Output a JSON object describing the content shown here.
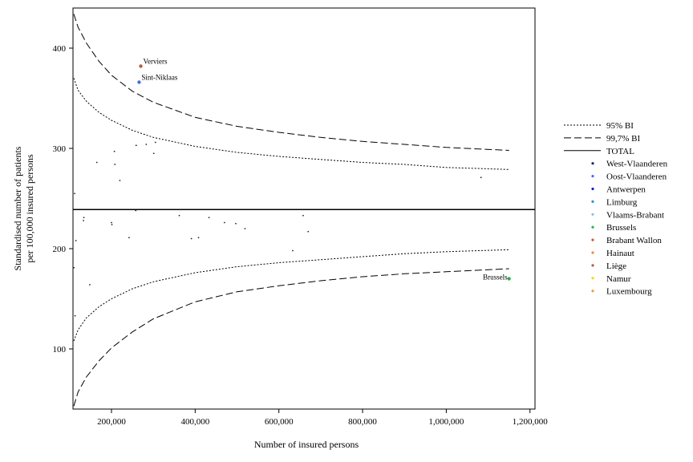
{
  "chart_data": {
    "type": "scatter",
    "title": "",
    "xlabel": "Number of insured persons",
    "ylabel_lines": [
      "Standardised number of patients",
      "per 100,000 insured persons"
    ],
    "xlim": [
      108000,
      1212000
    ],
    "ylim": [
      40,
      440
    ],
    "x_ticks": [
      {
        "value": 200000,
        "label": "200,000"
      },
      {
        "value": 400000,
        "label": "400,000"
      },
      {
        "value": 600000,
        "label": "600,000"
      },
      {
        "value": 800000,
        "label": "800,000"
      },
      {
        "value": 1000000,
        "label": "1,000,000"
      },
      {
        "value": 1200000,
        "label": "1,200,000"
      }
    ],
    "y_ticks": [
      {
        "value": 100,
        "label": "100"
      },
      {
        "value": 200,
        "label": "200"
      },
      {
        "value": 300,
        "label": "300"
      },
      {
        "value": 400,
        "label": "400"
      }
    ],
    "total": 239,
    "ci_curves": [
      {
        "name": "95% BI",
        "style": "dotted",
        "upper": true,
        "points": [
          [
            110000,
            370
          ],
          [
            120000,
            358
          ],
          [
            140000,
            347
          ],
          [
            170000,
            336
          ],
          [
            200000,
            328
          ],
          [
            250000,
            318
          ],
          [
            300000,
            311
          ],
          [
            400000,
            302
          ],
          [
            500000,
            296
          ],
          [
            600000,
            292
          ],
          [
            700000,
            289
          ],
          [
            800000,
            286
          ],
          [
            900000,
            284
          ],
          [
            1000000,
            281
          ],
          [
            1150000,
            279
          ]
        ]
      },
      {
        "name": "95% BI",
        "style": "dotted",
        "upper": false,
        "points": [
          [
            110000,
            108
          ],
          [
            120000,
            119
          ],
          [
            140000,
            131
          ],
          [
            170000,
            142
          ],
          [
            200000,
            150
          ],
          [
            250000,
            160
          ],
          [
            300000,
            167
          ],
          [
            400000,
            176
          ],
          [
            500000,
            182
          ],
          [
            600000,
            186
          ],
          [
            700000,
            189
          ],
          [
            800000,
            192
          ],
          [
            900000,
            195
          ],
          [
            1000000,
            197
          ],
          [
            1150000,
            199
          ]
        ]
      },
      {
        "name": "99,7% BI",
        "style": "dashed",
        "upper": true,
        "points": [
          [
            110000,
            434
          ],
          [
            120000,
            421
          ],
          [
            140000,
            405
          ],
          [
            170000,
            387
          ],
          [
            200000,
            373
          ],
          [
            250000,
            357
          ],
          [
            300000,
            346
          ],
          [
            400000,
            331
          ],
          [
            500000,
            322
          ],
          [
            600000,
            316
          ],
          [
            700000,
            311
          ],
          [
            800000,
            307
          ],
          [
            900000,
            304
          ],
          [
            1000000,
            301
          ],
          [
            1150000,
            298
          ]
        ]
      },
      {
        "name": "99,7% BI",
        "style": "dashed",
        "upper": false,
        "points": [
          [
            110000,
            43
          ],
          [
            120000,
            57
          ],
          [
            140000,
            72
          ],
          [
            170000,
            88
          ],
          [
            200000,
            101
          ],
          [
            250000,
            117
          ],
          [
            300000,
            130
          ],
          [
            400000,
            147
          ],
          [
            500000,
            157
          ],
          [
            600000,
            163
          ],
          [
            700000,
            168
          ],
          [
            800000,
            172
          ],
          [
            900000,
            175
          ],
          [
            1000000,
            177
          ],
          [
            1150000,
            180
          ]
        ]
      }
    ],
    "points": [
      {
        "x": 270000,
        "y": 382,
        "color": "#b85a3a",
        "label": "Verviers"
      },
      {
        "x": 266000,
        "y": 366,
        "color": "#4a6fd6",
        "label": "Sint-Niklaas"
      },
      {
        "x": 1150000,
        "y": 170,
        "color": "#2bb04a",
        "label": "Brussels"
      },
      {
        "x": 112000,
        "y": 255,
        "color": "#222222"
      },
      {
        "x": 165000,
        "y": 286,
        "color": "#222222"
      },
      {
        "x": 207000,
        "y": 297,
        "color": "#222222"
      },
      {
        "x": 208000,
        "y": 284,
        "color": "#222222"
      },
      {
        "x": 220000,
        "y": 268,
        "color": "#222222"
      },
      {
        "x": 259000,
        "y": 303,
        "color": "#222222"
      },
      {
        "x": 283000,
        "y": 304,
        "color": "#222222"
      },
      {
        "x": 301000,
        "y": 295,
        "color": "#222222"
      },
      {
        "x": 305000,
        "y": 306,
        "color": "#222222"
      },
      {
        "x": 1083000,
        "y": 271,
        "color": "#222222"
      },
      {
        "x": 258000,
        "y": 238,
        "color": "#222222"
      },
      {
        "x": 134000,
        "y": 231,
        "color": "#222222"
      },
      {
        "x": 133000,
        "y": 228,
        "color": "#222222"
      },
      {
        "x": 200000,
        "y": 226,
        "color": "#222222"
      },
      {
        "x": 201000,
        "y": 224,
        "color": "#222222"
      },
      {
        "x": 362000,
        "y": 233,
        "color": "#222222"
      },
      {
        "x": 433000,
        "y": 231,
        "color": "#222222"
      },
      {
        "x": 470000,
        "y": 226,
        "color": "#222222"
      },
      {
        "x": 497000,
        "y": 225,
        "color": "#222222"
      },
      {
        "x": 519000,
        "y": 220,
        "color": "#222222"
      },
      {
        "x": 658000,
        "y": 233,
        "color": "#222222"
      },
      {
        "x": 670000,
        "y": 217,
        "color": "#222222"
      },
      {
        "x": 115000,
        "y": 208,
        "color": "#222222"
      },
      {
        "x": 242000,
        "y": 211,
        "color": "#222222"
      },
      {
        "x": 391000,
        "y": 210,
        "color": "#222222"
      },
      {
        "x": 408000,
        "y": 211,
        "color": "#222222"
      },
      {
        "x": 633000,
        "y": 198,
        "color": "#222222"
      },
      {
        "x": 110000,
        "y": 181,
        "color": "#222222"
      },
      {
        "x": 148000,
        "y": 164,
        "color": "#222222"
      },
      {
        "x": 113000,
        "y": 133,
        "color": "#222222"
      }
    ],
    "legend_position": "right",
    "legend": [
      {
        "label": "95% BI",
        "type": "line",
        "dash": "2,2"
      },
      {
        "label": "99,7% BI",
        "type": "line",
        "dash": "9,4"
      },
      {
        "label": "TOTAL",
        "type": "line",
        "dash": ""
      },
      {
        "label": "West-Vlaanderen",
        "type": "dot",
        "color": "#1a237e"
      },
      {
        "label": "Oost-Vlaanderen",
        "type": "dot",
        "color": "#4a6fd6"
      },
      {
        "label": "Antwerpen",
        "type": "dot",
        "color": "#1a1ad6"
      },
      {
        "label": "Limburg",
        "type": "dot",
        "color": "#2f8fd6"
      },
      {
        "label": "Vlaams-Brabant",
        "type": "dot",
        "color": "#7cc6e8"
      },
      {
        "label": "Brussels",
        "type": "dot",
        "color": "#2bb04a"
      },
      {
        "label": "Brabant Wallon",
        "type": "dot",
        "color": "#c0603a"
      },
      {
        "label": "Hainaut",
        "type": "dot",
        "color": "#f08a24"
      },
      {
        "label": "Liège",
        "type": "dot",
        "color": "#b85a3a"
      },
      {
        "label": "Namur",
        "type": "dot",
        "color": "#f2d600"
      },
      {
        "label": "Luxembourg",
        "type": "dot",
        "color": "#f0a030"
      }
    ]
  }
}
